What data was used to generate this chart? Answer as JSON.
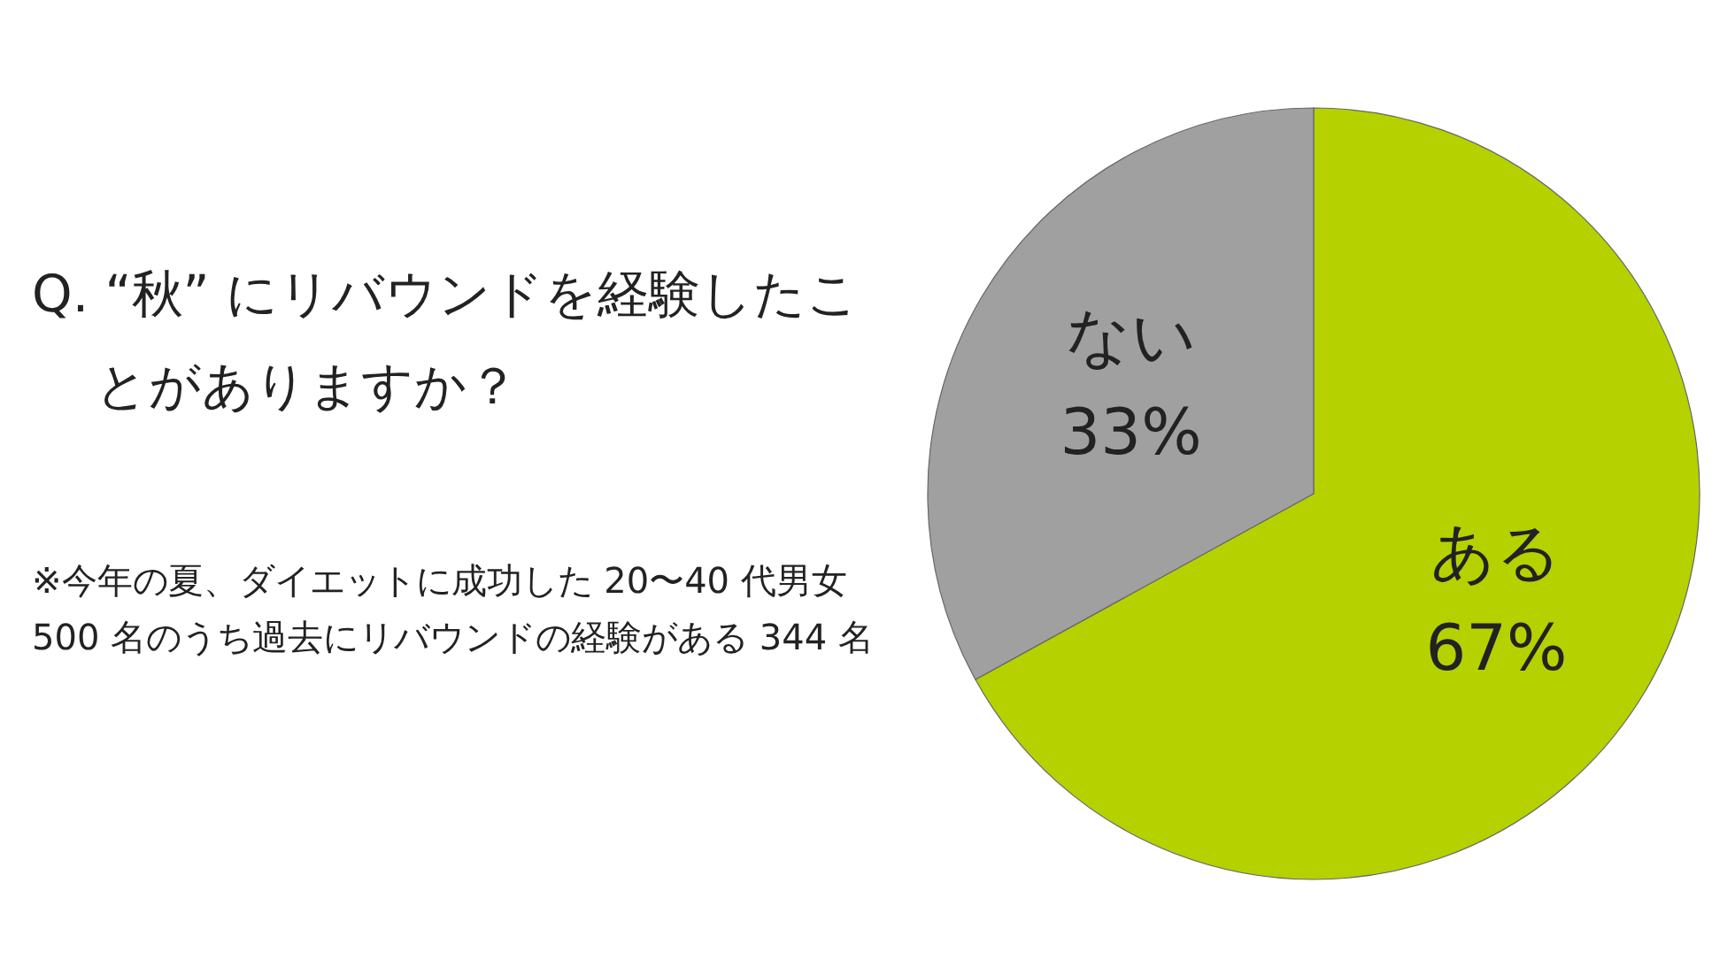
{
  "chart_data": {
    "type": "pie",
    "title": "Q. “秋” にリバウンドを経験したことがありますか？",
    "annotations": [
      "※今年の夏、ダイエットに成功した 20〜40 代男女 500 名のうち過去にリバウンドの経験がある 344 名"
    ],
    "categories": [
      "ある",
      "ない"
    ],
    "values": [
      67,
      33
    ],
    "value_labels": [
      "67%",
      "33%"
    ],
    "colors": [
      "#b5d100",
      "#a0a0a0"
    ]
  }
}
